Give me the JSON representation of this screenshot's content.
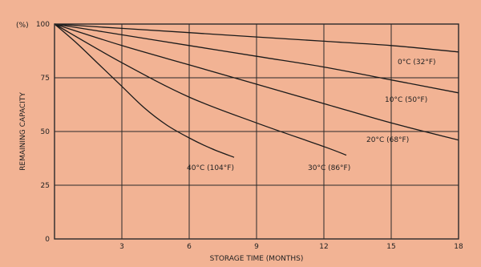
{
  "chart_data": {
    "type": "line",
    "xlabel": "STORAGE TIME (MONTHS)",
    "ylabel": "REMAINING CAPACITY",
    "y_unit_label": "(%)",
    "xlim": [
      0,
      18
    ],
    "ylim": [
      0,
      100
    ],
    "x_ticks": [
      3,
      6,
      9,
      12,
      15,
      18
    ],
    "y_ticks": [
      0,
      25,
      50,
      75,
      100
    ],
    "grid": true,
    "series": [
      {
        "name": "0°C (32°F)",
        "x": [
          0,
          3,
          6,
          9,
          12,
          15,
          18
        ],
        "y": [
          100,
          98,
          96,
          94,
          92,
          90,
          87
        ]
      },
      {
        "name": "10°C (50°F)",
        "x": [
          0,
          3,
          6,
          9,
          12,
          15,
          18
        ],
        "y": [
          100,
          95,
          90,
          85,
          80,
          74,
          68
        ]
      },
      {
        "name": "20°C (68°F)",
        "x": [
          0,
          3,
          6,
          9,
          12,
          15,
          18
        ],
        "y": [
          100,
          90,
          81,
          72,
          63,
          54,
          46
        ]
      },
      {
        "name": "30°C (86°F)",
        "x": [
          0,
          3,
          6,
          9,
          12,
          13
        ],
        "y": [
          100,
          82,
          66,
          54,
          43,
          39
        ]
      },
      {
        "name": "40°C (104°F)",
        "x": [
          0,
          1,
          2,
          3,
          4,
          5,
          6,
          7,
          8
        ],
        "y": [
          100,
          91,
          81,
          71,
          61,
          53,
          47,
          42,
          38
        ]
      }
    ]
  }
}
